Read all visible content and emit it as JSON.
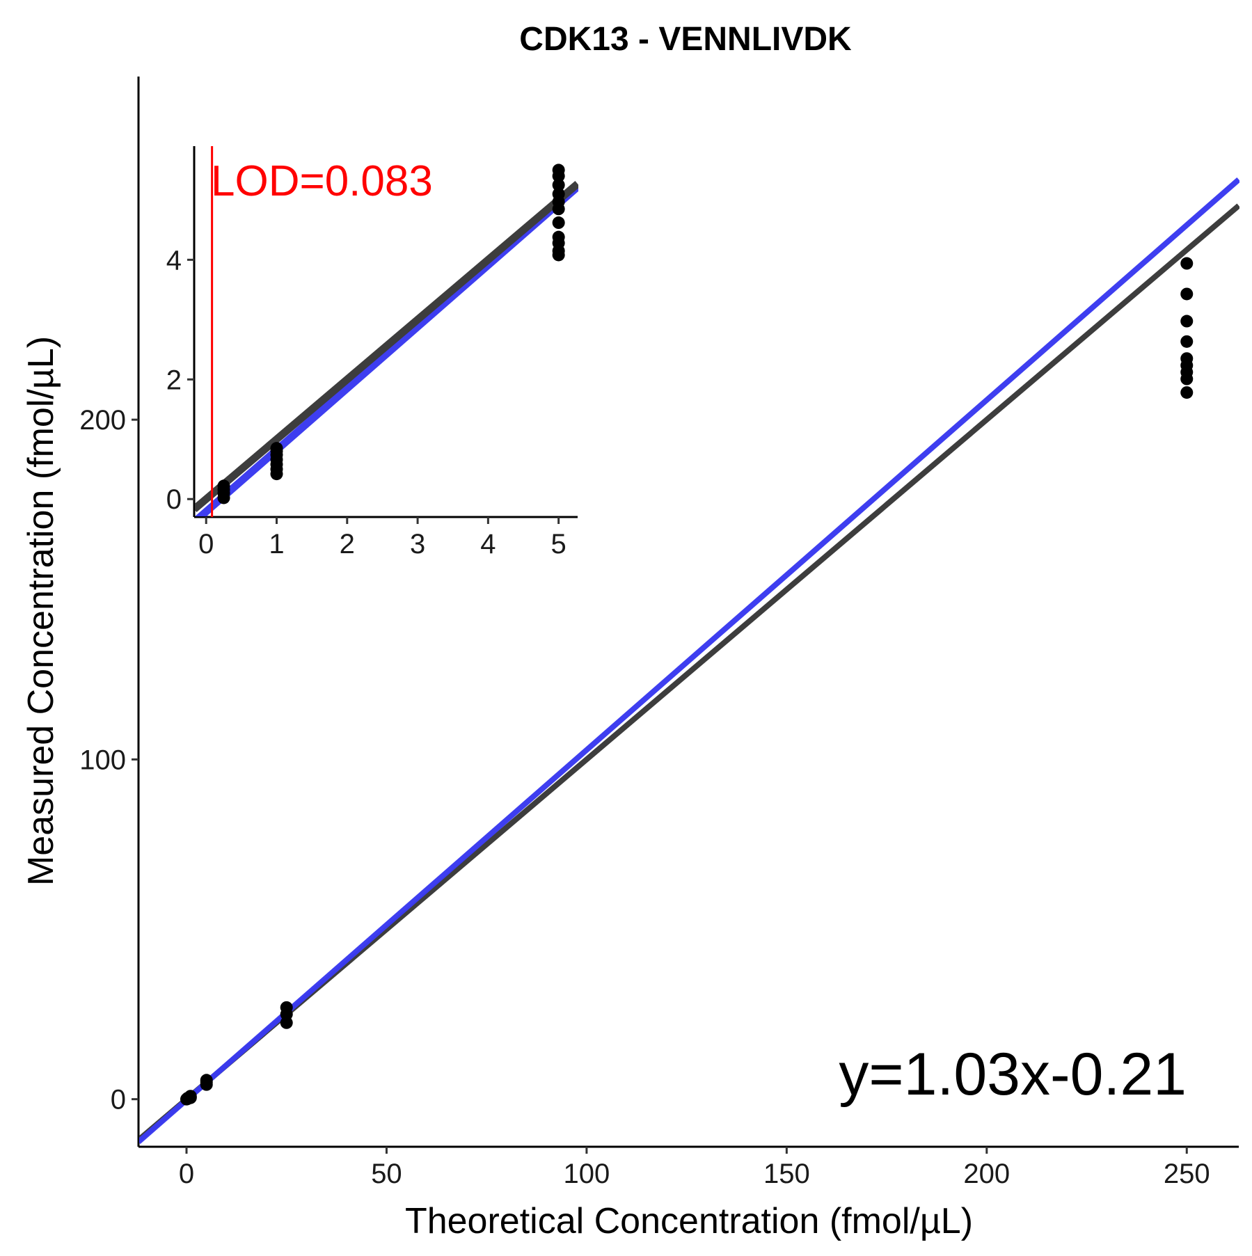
{
  "chart_data": [
    {
      "type": "scatter",
      "title": "CDK13 - VENNLIVDK",
      "xlabel": "Theoretical Concentration (fmol/µL)",
      "ylabel": "Measured Concentration (fmol/µL)",
      "xlim": [
        -12,
        263
      ],
      "ylim": [
        -14,
        301
      ],
      "x_ticks": [
        0,
        50,
        100,
        150,
        200,
        250
      ],
      "y_ticks": [
        0,
        100,
        200
      ],
      "grid": false,
      "points": {
        "x": [
          0,
          0.25,
          0.25,
          0.25,
          1,
          1,
          1,
          5,
          5,
          5,
          25,
          25,
          25,
          250,
          250,
          250,
          250,
          250,
          250,
          250,
          250,
          250
        ],
        "y": [
          0,
          0.1,
          0.2,
          0.3,
          0.4,
          0.6,
          0.9,
          4.3,
          5.0,
          5.6,
          22.5,
          25.0,
          27.0,
          246.0,
          237.0,
          229.0,
          223.0,
          218.0,
          216.0,
          214.0,
          212.0,
          208.0
        ]
      },
      "series": [
        {
          "name": "",
          "kind": "fit",
          "slope": 1.03,
          "intercept": -0.21,
          "color": "#3a3af0"
        },
        {
          "name": "",
          "kind": "identity",
          "slope": 1.0,
          "intercept": 0.0,
          "color": "#3d3d3d"
        }
      ],
      "annotation": "y=1.03x-0.21"
    },
    {
      "type": "scatter",
      "title": "",
      "xlabel": "",
      "ylabel": "",
      "xlim": [
        -0.17,
        5.27
      ],
      "ylim": [
        -0.3,
        5.9
      ],
      "x_ticks": [
        0,
        1,
        2,
        3,
        4,
        5
      ],
      "y_ticks": [
        0,
        2,
        4
      ],
      "grid": false,
      "points": {
        "x": [
          0.25,
          0.25,
          0.25,
          0.25,
          1,
          1,
          1,
          1,
          1,
          1,
          1,
          5,
          5,
          5,
          5,
          5,
          5,
          5,
          5,
          5,
          5,
          5
        ],
        "y": [
          0.02,
          0.1,
          0.16,
          0.22,
          0.42,
          0.5,
          0.58,
          0.66,
          0.74,
          0.8,
          0.85,
          4.08,
          4.15,
          4.28,
          4.38,
          4.62,
          4.85,
          4.97,
          5.1,
          5.25,
          5.4,
          5.5
        ]
      },
      "series": [
        {
          "name": "",
          "kind": "fit",
          "slope": 1.03,
          "intercept": -0.21,
          "color": "#3a3af0"
        },
        {
          "name": "",
          "kind": "identity",
          "slope": 1.0,
          "intercept": 0.0,
          "color": "#3d3d3d"
        }
      ],
      "lod": {
        "value": 0.083,
        "label": "LOD=0.083",
        "color": "#ff0000"
      }
    }
  ]
}
